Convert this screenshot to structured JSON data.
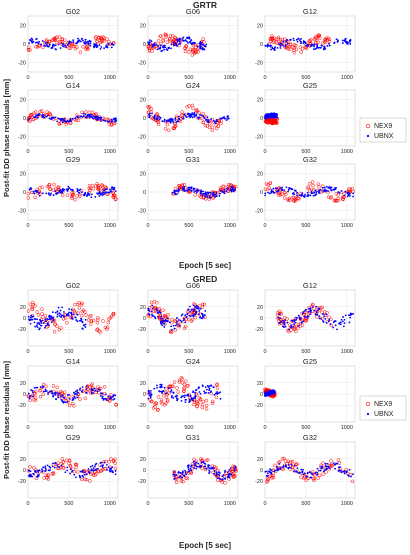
{
  "chart_data": [
    {
      "type": "scatter",
      "title": "GRTR",
      "xlabel": "Epoch [5 sec]",
      "ylabel": "Post-fit DD phase residuals [mm]",
      "legend": {
        "placement": "right",
        "entries": [
          "NEX9",
          "UBNX"
        ]
      },
      "series_colors": {
        "NEX9": "#ff0000",
        "UBNX": "#0000ff"
      },
      "grid": true,
      "xlim": [
        0,
        1100
      ],
      "ylim": [
        -30,
        30
      ],
      "xticks": [
        "0",
        "500",
        "1000"
      ],
      "yticks": [
        "-20",
        "0",
        "20"
      ],
      "panels": [
        {
          "title": "G02",
          "nex9": {
            "x": [
              0,
              1050
            ],
            "amp": 9
          },
          "ubnx": {
            "x": [
              0,
              1050
            ],
            "amp": 6
          }
        },
        {
          "title": "G06",
          "nex9": {
            "x": [
              0,
              700
            ],
            "amp": 12
          },
          "ubnx": {
            "x": [
              0,
              720
            ],
            "amp": 8
          }
        },
        {
          "title": "G12",
          "nex9": {
            "x": [
              50,
              820
            ],
            "amp": 10
          },
          "ubnx": {
            "x": [
              0,
              1080
            ],
            "amp": 7
          }
        },
        {
          "title": "G14",
          "nex9": {
            "x": [
              0,
              1080
            ],
            "amp": 8
          },
          "ubnx": {
            "x": [
              0,
              1080
            ],
            "amp": 5
          }
        },
        {
          "title": "G24",
          "nex9": {
            "x": [
              0,
              900
            ],
            "amp": 14
          },
          "ubnx": {
            "x": [
              0,
              1000
            ],
            "amp": 6
          }
        },
        {
          "title": "G25",
          "nex9": {
            "x": [
              0,
              150
            ],
            "amp": 6
          },
          "ubnx": {
            "x": [
              0,
              150
            ],
            "amp": 5
          }
        },
        {
          "title": "G29",
          "nex9": {
            "x": [
              0,
              1080
            ],
            "amp": 9
          },
          "ubnx": {
            "x": [
              0,
              1080
            ],
            "amp": 6
          }
        },
        {
          "title": "G31",
          "nex9": {
            "x": [
              300,
              1080
            ],
            "amp": 8
          },
          "ubnx": {
            "x": [
              300,
              1080
            ],
            "amp": 6
          }
        },
        {
          "title": "G32",
          "nex9": {
            "x": [
              0,
              1080
            ],
            "amp": 11
          },
          "ubnx": {
            "x": [
              0,
              1080
            ],
            "amp": 6
          }
        }
      ]
    },
    {
      "type": "scatter",
      "title": "GRED",
      "xlabel": "Epoch [5 sec]",
      "ylabel": "Post-fit DD phase residuals [mm]",
      "legend": {
        "placement": "right",
        "entries": [
          "NEX9",
          "UBNX"
        ]
      },
      "series_colors": {
        "NEX9": "#ff0000",
        "UBNX": "#0000ff"
      },
      "grid": true,
      "xlim": [
        0,
        1100
      ],
      "ylim": [
        -50,
        50
      ],
      "xticks": [
        "0",
        "500",
        "1000"
      ],
      "yticks": [
        "-20",
        "0",
        "20"
      ],
      "panels": [
        {
          "title": "G02",
          "nex9": {
            "x": [
              0,
              1050
            ],
            "amp": 28
          },
          "ubnx": {
            "x": [
              0,
              720
            ],
            "amp": 22
          }
        },
        {
          "title": "G06",
          "nex9": {
            "x": [
              0,
              700
            ],
            "amp": 30
          },
          "ubnx": {
            "x": [
              0,
              700
            ],
            "amp": 24
          }
        },
        {
          "title": "G12",
          "nex9": {
            "x": [
              150,
              820
            ],
            "amp": 26
          },
          "ubnx": {
            "x": [
              150,
              1080
            ],
            "amp": 22
          }
        },
        {
          "title": "G14",
          "nex9": {
            "x": [
              0,
              1080
            ],
            "amp": 22
          },
          "ubnx": {
            "x": [
              0,
              1080
            ],
            "amp": 16
          }
        },
        {
          "title": "G24",
          "nex9": {
            "x": [
              0,
              850
            ],
            "amp": 30
          },
          "ubnx": {
            "x": [
              0,
              900
            ],
            "amp": 18
          }
        },
        {
          "title": "G25",
          "nex9": {
            "x": [
              0,
              120
            ],
            "amp": 10
          },
          "ubnx": {
            "x": [
              0,
              120
            ],
            "amp": 8
          }
        },
        {
          "title": "G29",
          "nex9": {
            "x": [
              0,
              1080
            ],
            "amp": 22
          },
          "ubnx": {
            "x": [
              0,
              1080
            ],
            "amp": 14
          }
        },
        {
          "title": "G31",
          "nex9": {
            "x": [
              300,
              1080
            ],
            "amp": 26
          },
          "ubnx": {
            "x": [
              300,
              1080
            ],
            "amp": 18
          }
        },
        {
          "title": "G32",
          "nex9": {
            "x": [
              0,
              1080
            ],
            "amp": 24
          },
          "ubnx": {
            "x": [
              0,
              1080
            ],
            "amp": 14
          }
        }
      ]
    }
  ]
}
